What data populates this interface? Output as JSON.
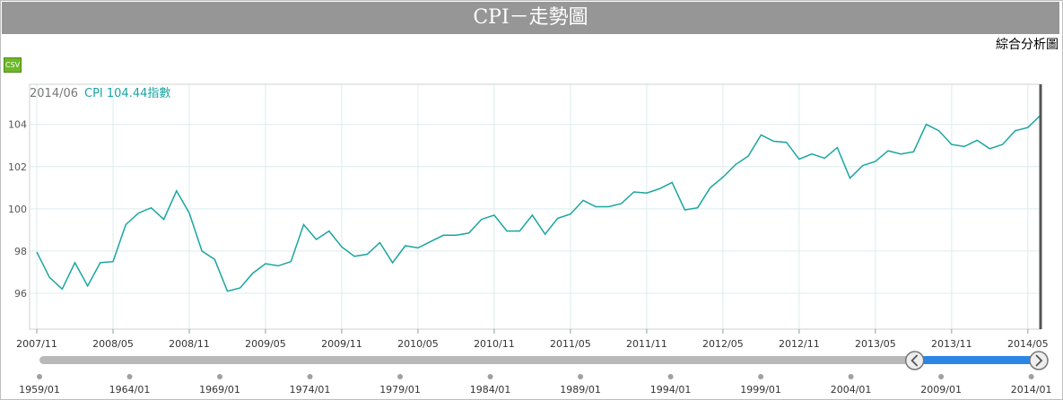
{
  "header": {
    "title": "CPI－走勢圖"
  },
  "toolbar": {
    "analysis_link": "綜合分析圖",
    "csv_label": "CSV"
  },
  "readout": {
    "date": "2014/06",
    "value_text": "CPI 104.44指數"
  },
  "colors": {
    "line": "#19a5a0",
    "readout_value": "#19a5a0",
    "grid": "#dcecec",
    "cursor": "#555555",
    "slider_track": "#b9b9b9",
    "slider_selected": "#2b86e6"
  },
  "navigator": {
    "labels": [
      "1959/01",
      "1964/01",
      "1969/01",
      "1974/01",
      "1979/01",
      "1984/01",
      "1989/01",
      "1994/01",
      "1999/01",
      "2004/01",
      "2009/01",
      "2014/01"
    ],
    "range": [
      "1959/01",
      "2014/06"
    ],
    "selected": [
      "2007/11",
      "2014/06"
    ],
    "left_handle_icon": "chevron-left-icon",
    "right_handle_icon": "chevron-right-icon"
  },
  "chart_data": {
    "type": "line",
    "title": "",
    "xlabel": "",
    "ylabel": "",
    "x_ticks": [
      "2007/11",
      "2008/05",
      "2008/11",
      "2009/05",
      "2009/11",
      "2010/05",
      "2010/11",
      "2011/05",
      "2011/11",
      "2012/05",
      "2012/11",
      "2013/05",
      "2013/11",
      "2014/05"
    ],
    "y_ticks": [
      96,
      98,
      100,
      102,
      104
    ],
    "ylim": [
      94.3,
      105.9
    ],
    "xlim": [
      "2007/11",
      "2014/06"
    ],
    "grid": true,
    "series": [
      {
        "x": [
          "2007/11",
          "2007/12",
          "2008/01",
          "2008/02",
          "2008/03",
          "2008/04",
          "2008/05",
          "2008/06",
          "2008/07",
          "2008/08",
          "2008/09",
          "2008/10",
          "2008/11",
          "2008/12",
          "2009/01",
          "2009/02",
          "2009/03",
          "2009/04",
          "2009/05",
          "2009/06",
          "2009/07",
          "2009/08",
          "2009/09",
          "2009/10",
          "2009/11",
          "2009/12",
          "2010/01",
          "2010/02",
          "2010/03",
          "2010/04",
          "2010/05",
          "2010/06",
          "2010/07",
          "2010/08",
          "2010/09",
          "2010/10",
          "2010/11",
          "2010/12",
          "2011/01",
          "2011/02",
          "2011/03",
          "2011/04",
          "2011/05",
          "2011/06",
          "2011/07",
          "2011/08",
          "2011/09",
          "2011/10",
          "2011/11",
          "2011/12",
          "2012/01",
          "2012/02",
          "2012/03",
          "2012/04",
          "2012/05",
          "2012/06",
          "2012/07",
          "2012/08",
          "2012/09",
          "2012/10",
          "2012/11",
          "2012/12",
          "2013/01",
          "2013/02",
          "2013/03",
          "2013/04",
          "2013/05",
          "2013/06",
          "2013/07",
          "2013/08",
          "2013/09",
          "2013/10",
          "2013/11",
          "2013/12",
          "2014/01",
          "2014/02",
          "2014/03",
          "2014/04",
          "2014/05",
          "2014/06"
        ],
        "values": [
          97.95,
          96.75,
          96.2,
          97.45,
          96.35,
          97.45,
          97.5,
          99.25,
          99.8,
          100.05,
          99.5,
          100.85,
          99.8,
          98.0,
          97.6,
          96.1,
          96.25,
          96.95,
          97.4,
          97.3,
          97.5,
          99.25,
          98.55,
          98.95,
          98.2,
          97.75,
          97.85,
          98.4,
          97.45,
          98.25,
          98.15,
          98.45,
          98.75,
          98.75,
          98.85,
          99.5,
          99.7,
          98.95,
          98.95,
          99.7,
          98.8,
          99.55,
          99.75,
          100.4,
          100.1,
          100.1,
          100.25,
          100.8,
          100.75,
          100.95,
          101.25,
          99.95,
          100.05,
          101.0,
          101.5,
          102.1,
          102.5,
          103.5,
          103.2,
          103.15,
          102.35,
          102.6,
          102.4,
          102.9,
          101.45,
          102.05,
          102.25,
          102.75,
          102.6,
          102.7,
          104.0,
          103.7,
          103.05,
          102.95,
          103.25,
          102.85,
          103.05,
          103.7,
          103.85,
          104.44
        ]
      }
    ]
  }
}
